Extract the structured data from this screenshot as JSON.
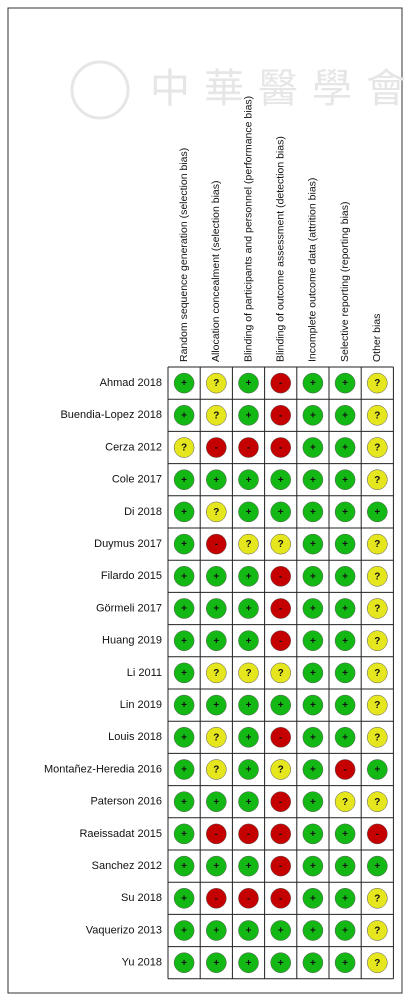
{
  "watermark": "中華醫學會",
  "table": {
    "columns": [
      "Random sequence generation (selection bias)",
      "Allocation concealment (selection bias)",
      "Blinding of participants and personnel (performance bias)",
      "Blinding of outcome assessment (detection bias)",
      "Incomplete outcome data (attrition bias)",
      "Selective reporting (reporting bias)",
      "Other bias"
    ],
    "rows": [
      {
        "study": "Ahmad 2018",
        "cells": [
          "+",
          "?",
          "+",
          "-",
          "+",
          "+",
          "?"
        ]
      },
      {
        "study": "Buendia-Lopez 2018",
        "cells": [
          "+",
          "?",
          "+",
          "-",
          "+",
          "+",
          "?"
        ]
      },
      {
        "study": "Cerza 2012",
        "cells": [
          "?",
          "-",
          "-",
          "-",
          "+",
          "+",
          "?"
        ]
      },
      {
        "study": "Cole 2017",
        "cells": [
          "+",
          "+",
          "+",
          "+",
          "+",
          "+",
          "?"
        ]
      },
      {
        "study": "Di 2018",
        "cells": [
          "+",
          "?",
          "+",
          "+",
          "+",
          "+",
          "+"
        ]
      },
      {
        "study": "Duymus 2017",
        "cells": [
          "+",
          "-",
          "?",
          "?",
          "+",
          "+",
          "?"
        ]
      },
      {
        "study": "Filardo 2015",
        "cells": [
          "+",
          "+",
          "+",
          "-",
          "+",
          "+",
          "?"
        ]
      },
      {
        "study": "Görmeli 2017",
        "cells": [
          "+",
          "+",
          "+",
          "-",
          "+",
          "+",
          "?"
        ]
      },
      {
        "study": "Huang 2019",
        "cells": [
          "+",
          "+",
          "+",
          "-",
          "+",
          "+",
          "?"
        ]
      },
      {
        "study": "Li 2011",
        "cells": [
          "+",
          "?",
          "?",
          "?",
          "+",
          "+",
          "?"
        ]
      },
      {
        "study": "Lin 2019",
        "cells": [
          "+",
          "+",
          "+",
          "+",
          "+",
          "+",
          "?"
        ]
      },
      {
        "study": "Louis 2018",
        "cells": [
          "+",
          "?",
          "+",
          "-",
          "+",
          "+",
          "?"
        ]
      },
      {
        "study": "Montañez-Heredia 2016",
        "cells": [
          "+",
          "?",
          "+",
          "?",
          "+",
          "-",
          "+"
        ]
      },
      {
        "study": "Paterson 2016",
        "cells": [
          "+",
          "+",
          "+",
          "-",
          "+",
          "?",
          "?"
        ]
      },
      {
        "study": "Raeissadat 2015",
        "cells": [
          "+",
          "-",
          "-",
          "-",
          "+",
          "+",
          "-"
        ]
      },
      {
        "study": "Sanchez 2012",
        "cells": [
          "+",
          "+",
          "+",
          "-",
          "+",
          "+",
          "+"
        ]
      },
      {
        "study": "Su 2018",
        "cells": [
          "+",
          "-",
          "-",
          "-",
          "+",
          "+",
          "?"
        ]
      },
      {
        "study": "Vaquerizo 2013",
        "cells": [
          "+",
          "+",
          "+",
          "+",
          "+",
          "+",
          "?"
        ]
      },
      {
        "study": "Yu 2018",
        "cells": [
          "+",
          "+",
          "+",
          "+",
          "+",
          "+",
          "?"
        ]
      }
    ],
    "colors": {
      "+": "#14b814",
      "?": "#e6e61e",
      "-": "#c40000"
    }
  }
}
